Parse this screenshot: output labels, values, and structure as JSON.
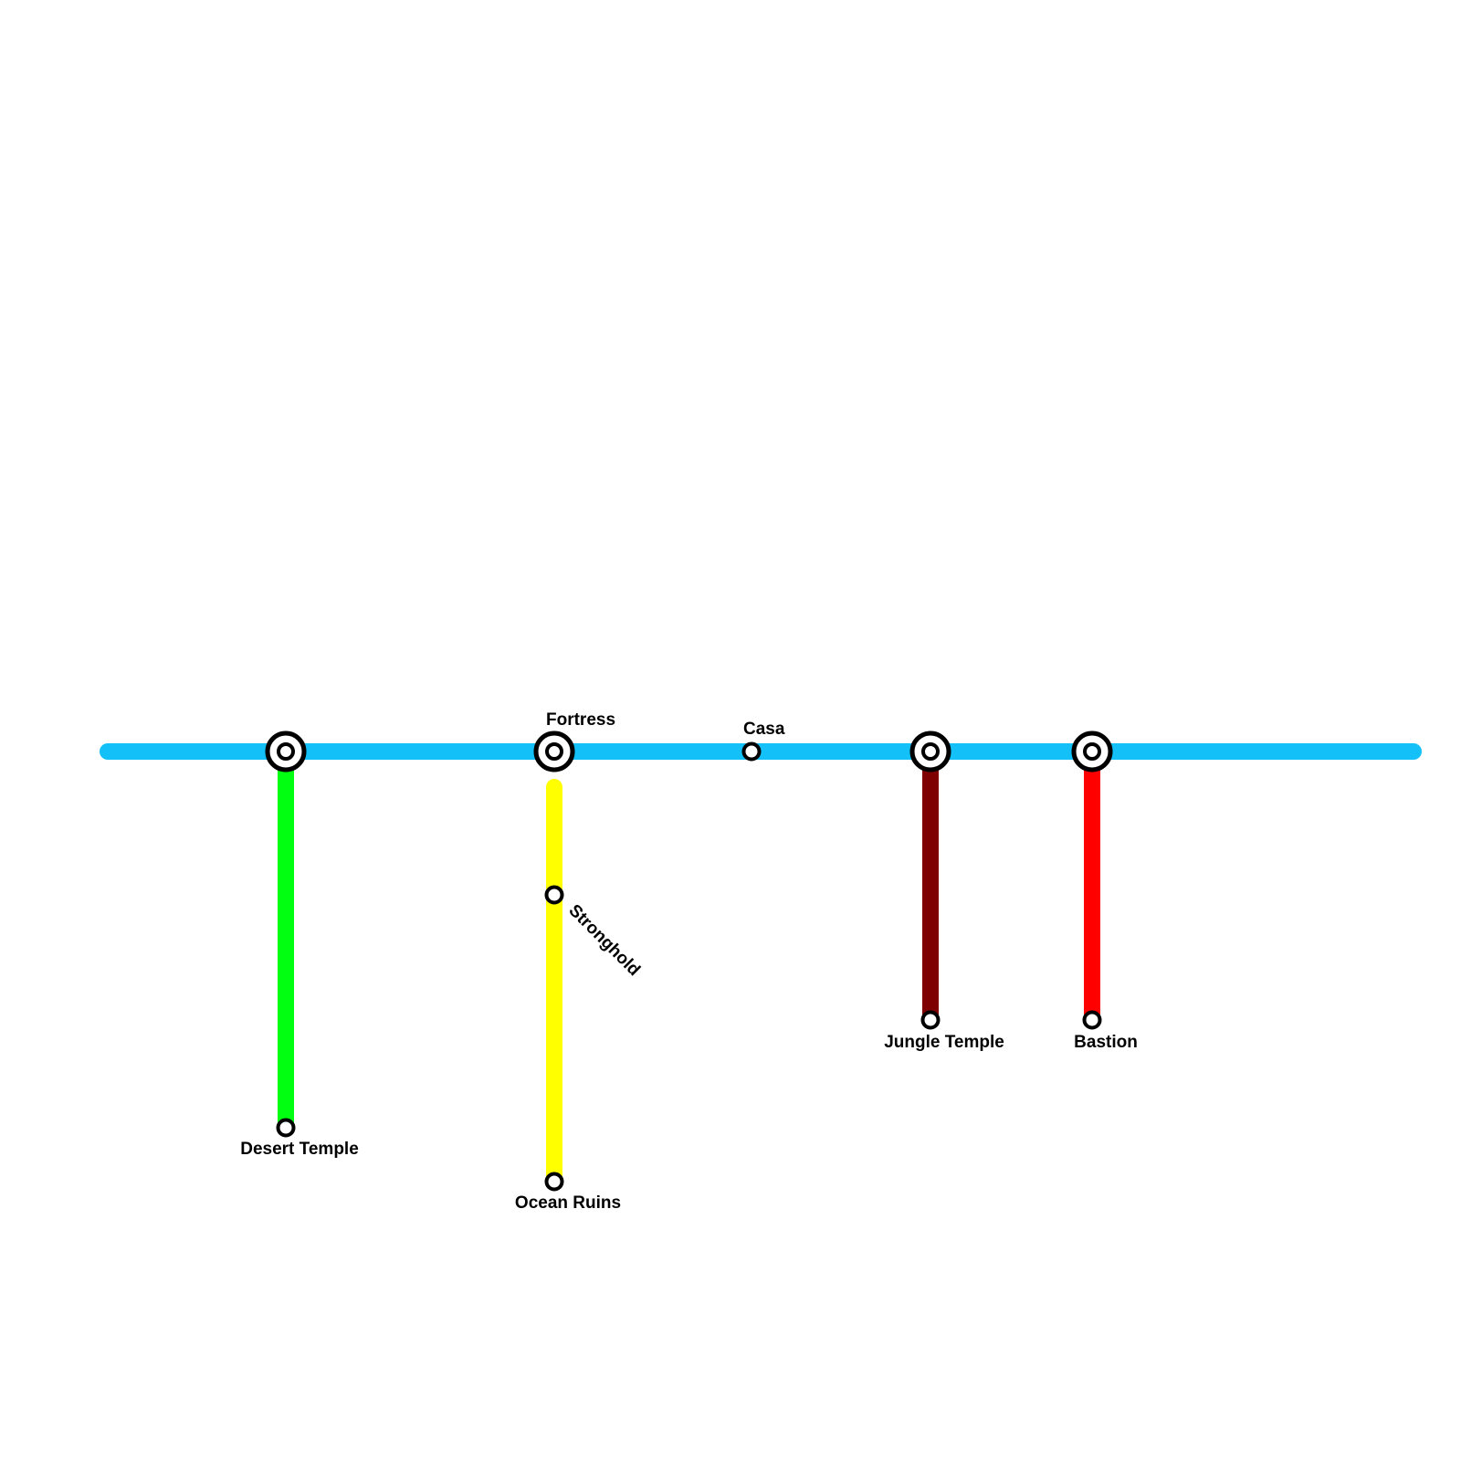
{
  "stations": [
    {
      "label": "Fortress"
    },
    {
      "label": "Casa"
    },
    {
      "label": "Stronghold"
    },
    {
      "label": "Desert Temple"
    },
    {
      "label": "Ocean Ruins"
    },
    {
      "label": "Jungle Temple"
    },
    {
      "label": "Bastion"
    }
  ]
}
